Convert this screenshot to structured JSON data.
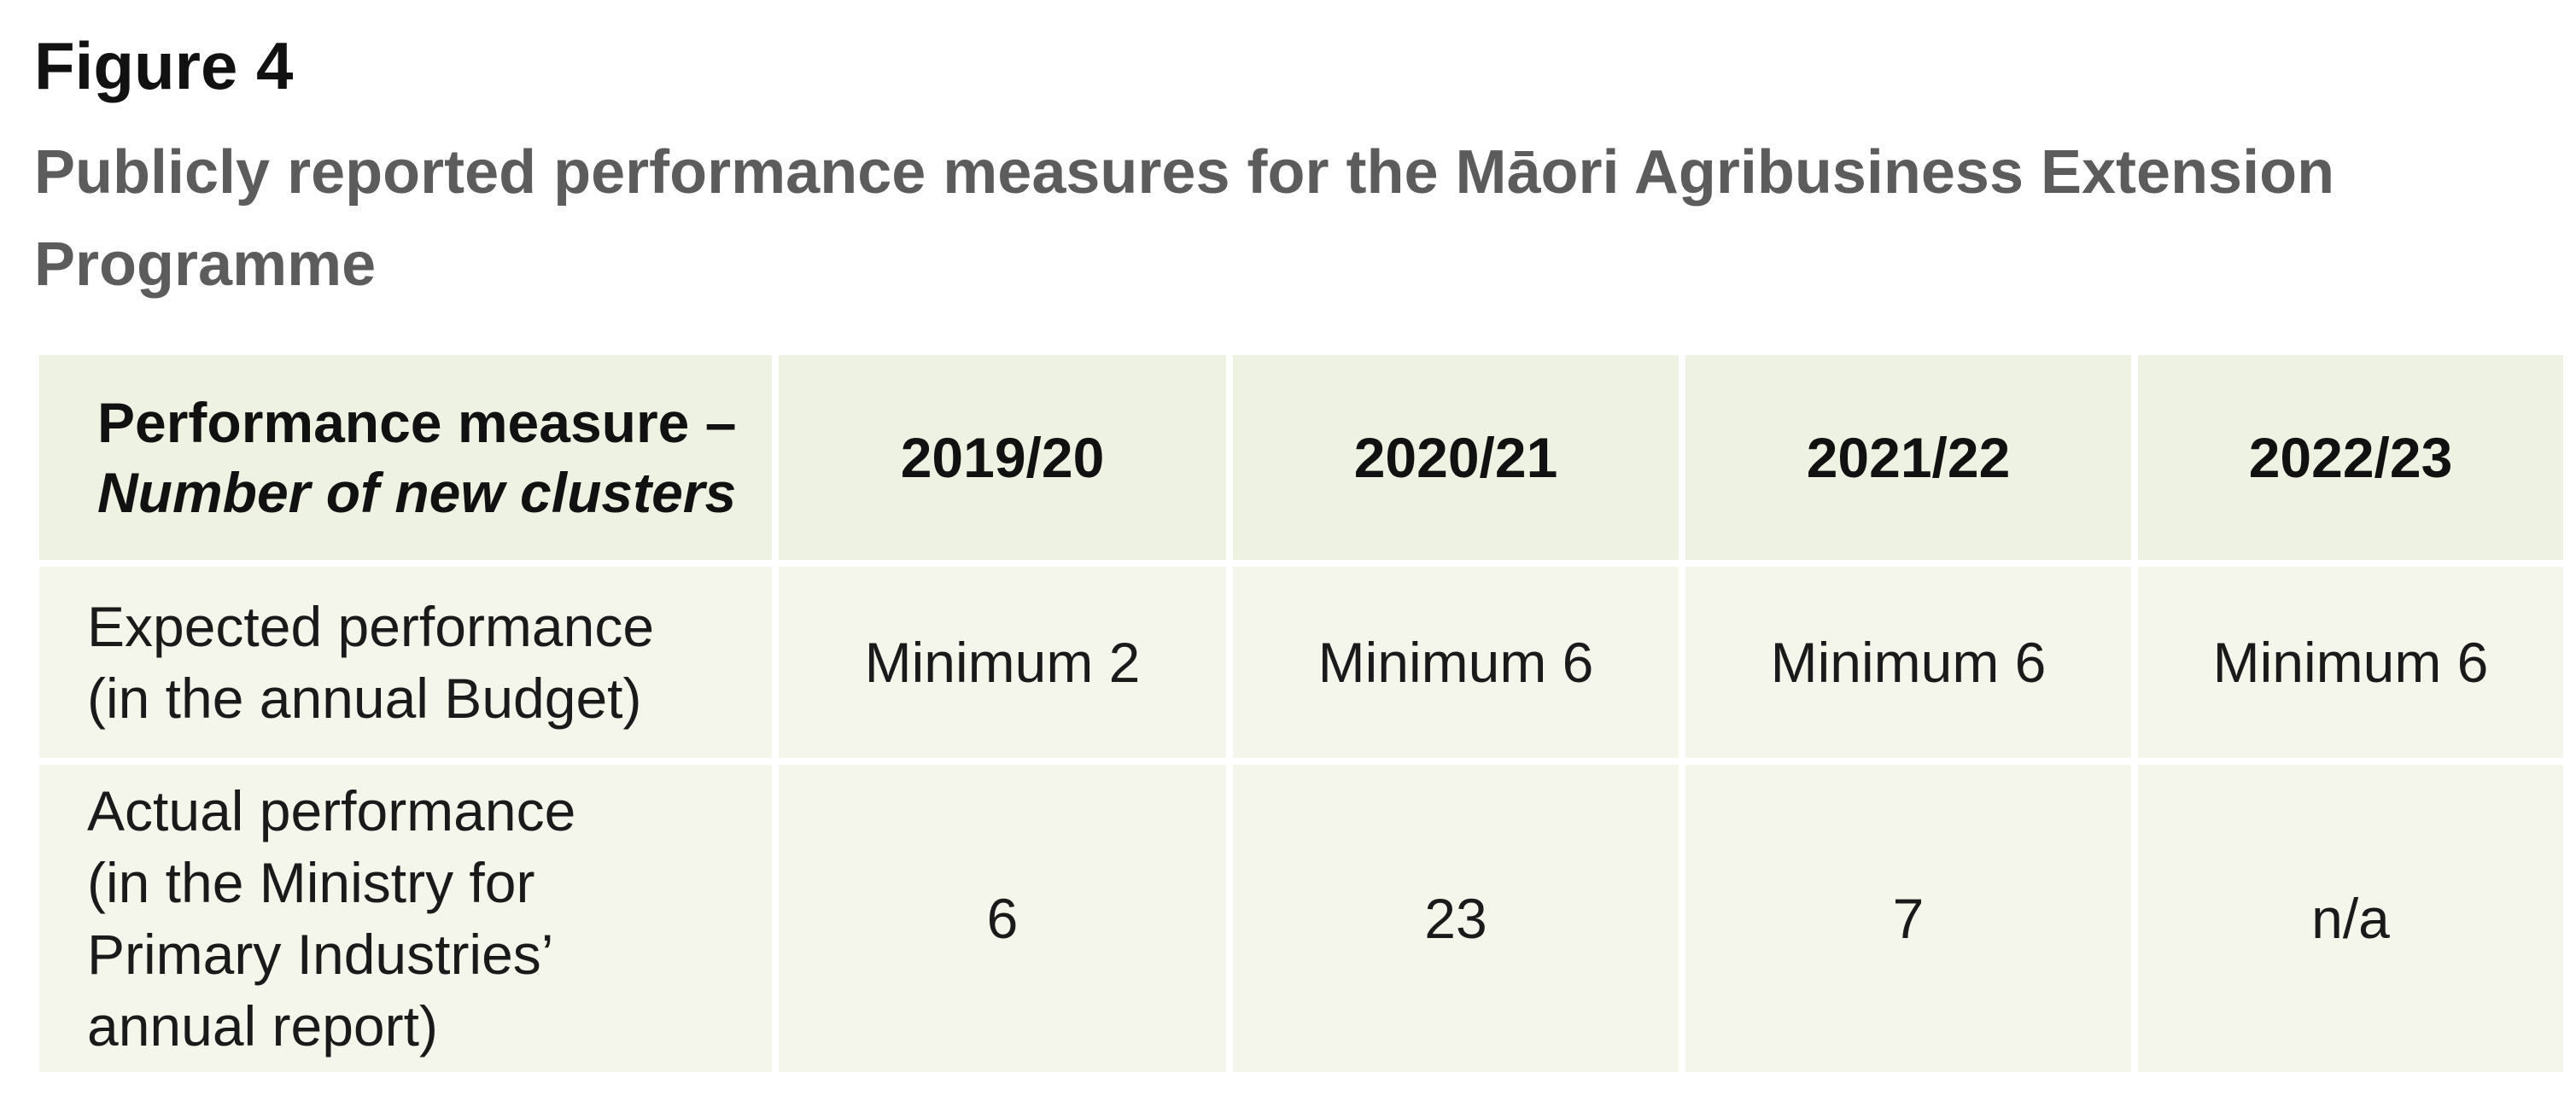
{
  "figure": {
    "label": "Figure 4",
    "title": "Publicly reported performance measures for the Māori Agribusiness Extension Programme"
  },
  "table": {
    "header": {
      "measure_label": "Performance measure –",
      "measure_sublabel": "Number of new clusters",
      "years": [
        "2019/20",
        "2020/21",
        "2021/22",
        "2022/23"
      ]
    },
    "rows": [
      {
        "label": "Expected performance\n(in the annual Budget)",
        "values": [
          "Minimum 2",
          "Minimum 6",
          "Minimum 6",
          "Minimum 6"
        ]
      },
      {
        "label": "Actual performance\n(in the Ministry for\nPrimary Industries’\nannual report)",
        "values": [
          "6",
          "23",
          "7",
          "n/a"
        ]
      }
    ]
  },
  "colors": {
    "header_bg": "#eef2e2",
    "cell_bg": "#f4f6ec",
    "title_color": "#5c5c5c"
  }
}
